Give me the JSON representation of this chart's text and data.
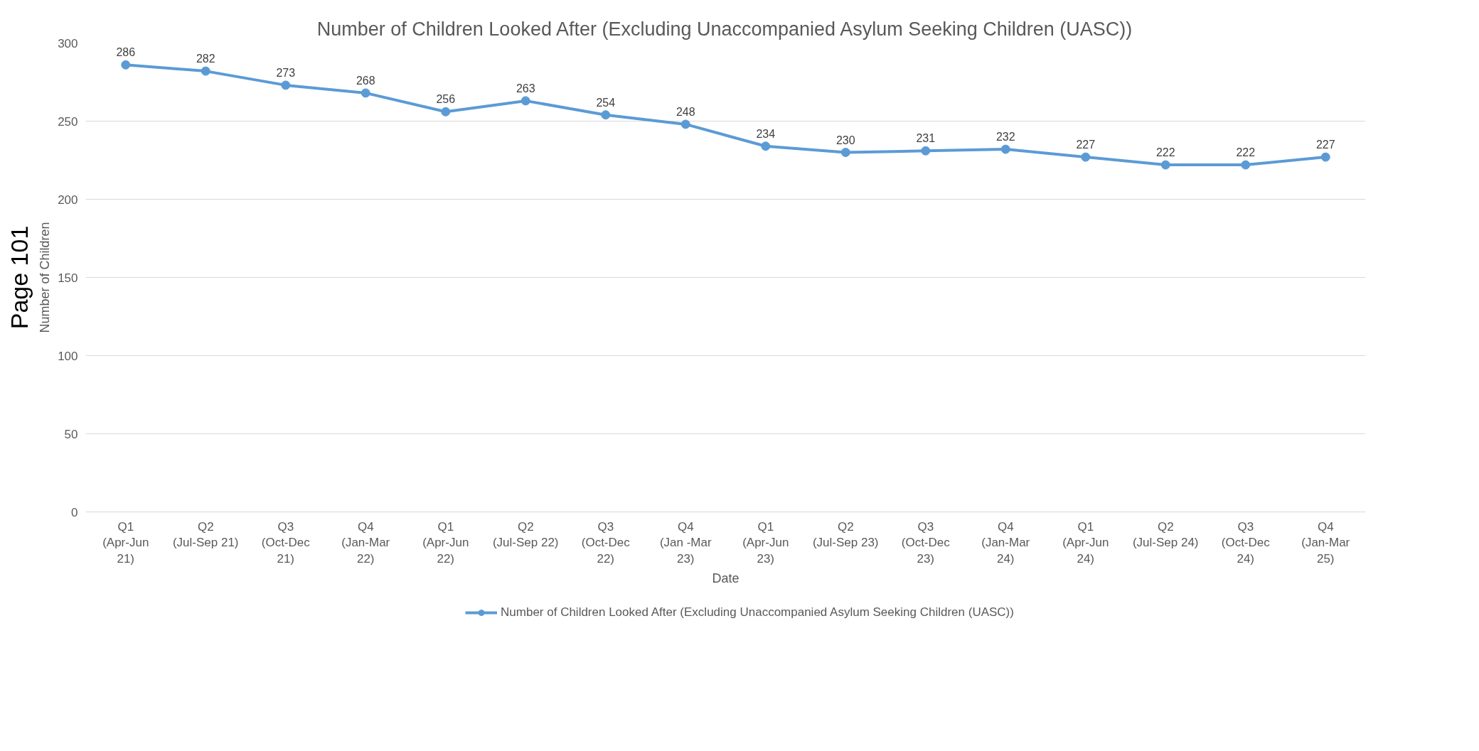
{
  "chart_data": {
    "type": "line",
    "title": "Number of Children Looked After (Excluding Unaccompanied Asylum Seeking Children (UASC))",
    "xlabel": "Date",
    "ylabel": "Number of Children",
    "categories": [
      "Q1\n(Apr-Jun\n21)",
      "Q2\n(Jul-Sep 21)",
      "Q3\n(Oct-Dec\n21)",
      "Q4\n(Jan-Mar\n22)",
      "Q1\n(Apr-Jun\n22)",
      "Q2\n(Jul-Sep 22)",
      "Q3\n(Oct-Dec\n22)",
      "Q4\n(Jan -Mar\n23)",
      "Q1\n(Apr-Jun\n23)",
      "Q2\n(Jul-Sep 23)",
      "Q3\n(Oct-Dec\n23)",
      "Q4\n(Jan-Mar\n24)",
      "Q1\n(Apr-Jun\n24)",
      "Q2\n(Jul-Sep 24)",
      "Q3\n(Oct-Dec\n24)",
      "Q4\n(Jan-Mar\n25)"
    ],
    "series": [
      {
        "name": "Number of Children Looked After (Excluding Unaccompanied Asylum Seeking Children (UASC))",
        "color": "#5b9bd5",
        "values": [
          286,
          282,
          273,
          268,
          256,
          263,
          254,
          248,
          234,
          230,
          231,
          232,
          227,
          222,
          222,
          227
        ]
      }
    ],
    "ylim": [
      0,
      300
    ],
    "yticks": [
      0,
      50,
      100,
      150,
      200,
      250,
      300
    ],
    "grid": "y",
    "legend": "bottom",
    "marker": "circle",
    "line_style": "solid",
    "data_labels": true,
    "annotations": [
      "Page 101"
    ]
  }
}
